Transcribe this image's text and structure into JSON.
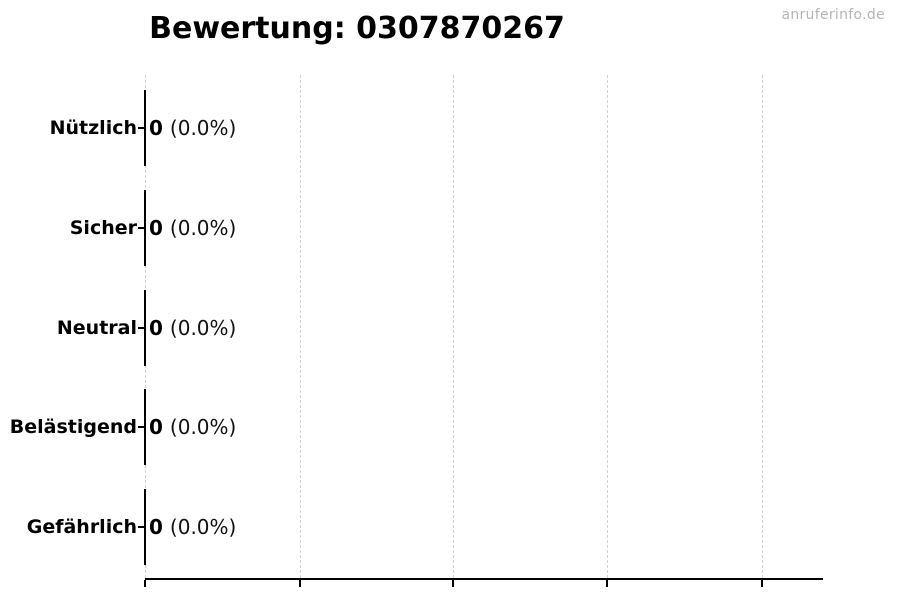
{
  "watermark": {
    "text": "anruferinfo.de"
  },
  "colors": {
    "background": "#ffffff",
    "text": "#000000",
    "grid": "#d2d2d2",
    "axis": "#000000",
    "watermark": "#b5b5b5"
  },
  "chart_data": {
    "type": "bar",
    "orientation": "horizontal",
    "title": "Bewertung: 0307870267",
    "categories": [
      "Nützlich",
      "Sicher",
      "Neutral",
      "Belästigend",
      "Gefährlich"
    ],
    "values": [
      0,
      0,
      0,
      0,
      0
    ],
    "percent_values": [
      0.0,
      0.0,
      0.0,
      0.0,
      0.0
    ],
    "rows": [
      {
        "label": "Nützlich",
        "count": "0",
        "percent": "(0.0%)"
      },
      {
        "label": "Sicher",
        "count": "0",
        "percent": "(0.0%)"
      },
      {
        "label": "Neutral",
        "count": "0",
        "percent": "(0.0%)"
      },
      {
        "label": "Belästigend",
        "count": "0",
        "percent": "(0.0%)"
      },
      {
        "label": "Gefährlich",
        "count": "0",
        "percent": "(0.0%)"
      }
    ],
    "xlabel": "",
    "ylabel": "",
    "x_tick_labels_visible": false,
    "grid": "vertical-dashed",
    "legend": "none"
  }
}
